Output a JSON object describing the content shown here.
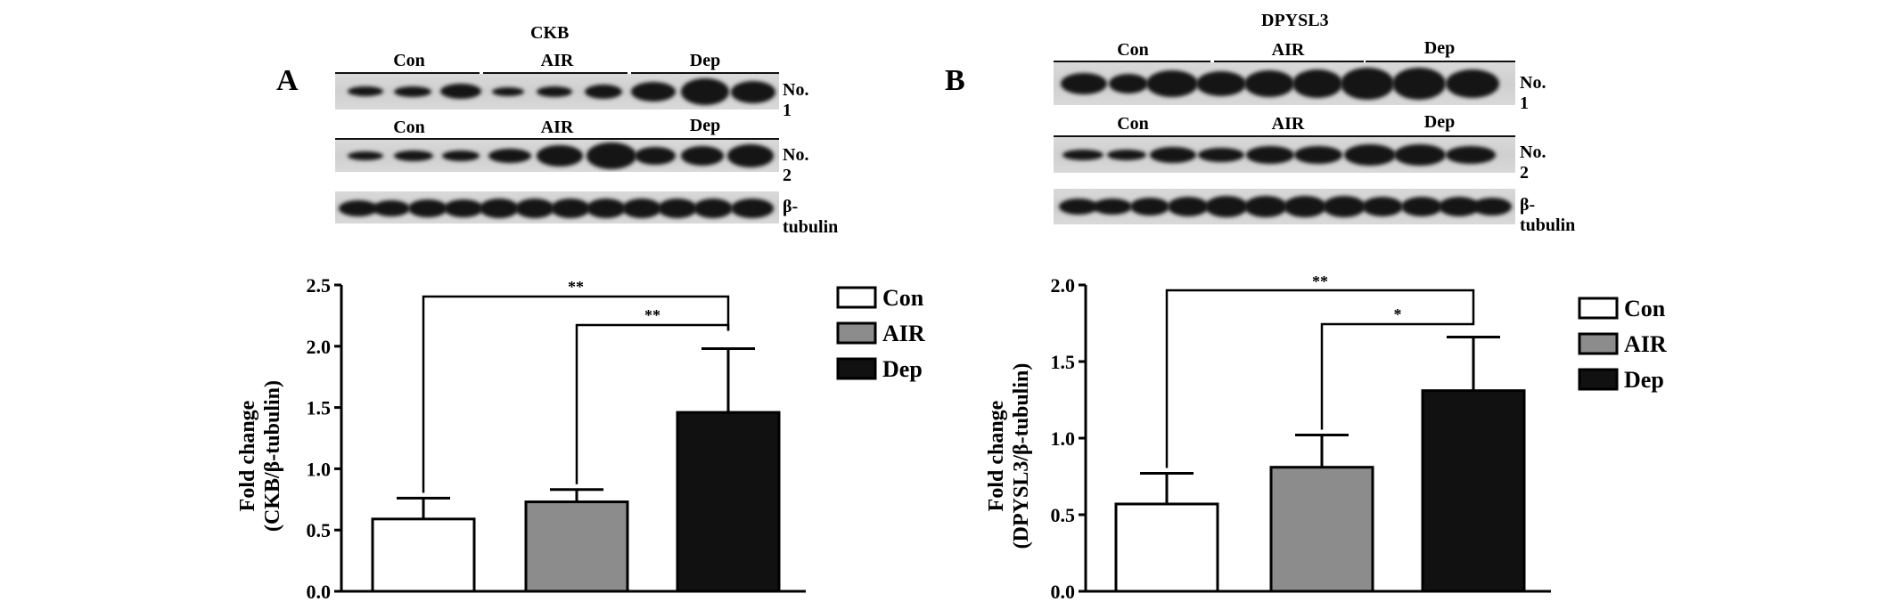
{
  "panels": [
    {
      "letter": "A",
      "blot": {
        "title": "CKB",
        "rows": [
          {
            "label": "No. 1",
            "groups": [
              "Con",
              "AIR",
              "Dep"
            ]
          },
          {
            "label": "No. 2",
            "groups": [
              "Con",
              "AIR",
              "Dep"
            ]
          },
          {
            "label": "β-tubulin",
            "groups": []
          }
        ]
      }
    },
    {
      "letter": "B",
      "blot": {
        "title": "DPYSL3",
        "rows": [
          {
            "label": "No. 1",
            "groups": [
              "Con",
              "AIR",
              "Dep"
            ]
          },
          {
            "label": "No. 2",
            "groups": [
              "Con",
              "AIR",
              "Dep"
            ]
          },
          {
            "label": "β-tubulin",
            "groups": []
          }
        ]
      }
    }
  ],
  "chart_data": [
    {
      "type": "bar",
      "categories": [
        "Con",
        "AIR",
        "Dep"
      ],
      "values": [
        0.59,
        0.73,
        1.46
      ],
      "errors": [
        0.17,
        0.1,
        0.52
      ],
      "colors": [
        "#ffffff",
        "#8c8c8c",
        "#111111"
      ],
      "ylabel": [
        "Fold change",
        "(CKB/β-tubulin)"
      ],
      "ylim": [
        0,
        2.5
      ],
      "yticks": [
        "0.0",
        "0.5",
        "1.0",
        "1.5",
        "2.0",
        "2.5"
      ],
      "significance": [
        {
          "from": "Con",
          "to": "Dep",
          "label": "**"
        },
        {
          "from": "AIR",
          "to": "Dep",
          "label": "**"
        }
      ],
      "legend": [
        "Con",
        "AIR",
        "Dep"
      ],
      "legend_position": "top-right",
      "grid": false
    },
    {
      "type": "bar",
      "categories": [
        "Con",
        "AIR",
        "Dep"
      ],
      "values": [
        0.57,
        0.81,
        1.31
      ],
      "errors": [
        0.2,
        0.21,
        0.35
      ],
      "colors": [
        "#ffffff",
        "#8c8c8c",
        "#111111"
      ],
      "ylabel": [
        "Fold change",
        "(DPYSL3/β-tubulin)"
      ],
      "ylim": [
        0,
        2.0
      ],
      "yticks": [
        "0.0",
        "0.5",
        "1.0",
        "1.5",
        "2.0"
      ],
      "significance": [
        {
          "from": "Con",
          "to": "Dep",
          "label": "**"
        },
        {
          "from": "AIR",
          "to": "Dep",
          "label": "*"
        }
      ],
      "legend": [
        "Con",
        "AIR",
        "Dep"
      ],
      "legend_position": "top-right",
      "grid": false
    }
  ]
}
